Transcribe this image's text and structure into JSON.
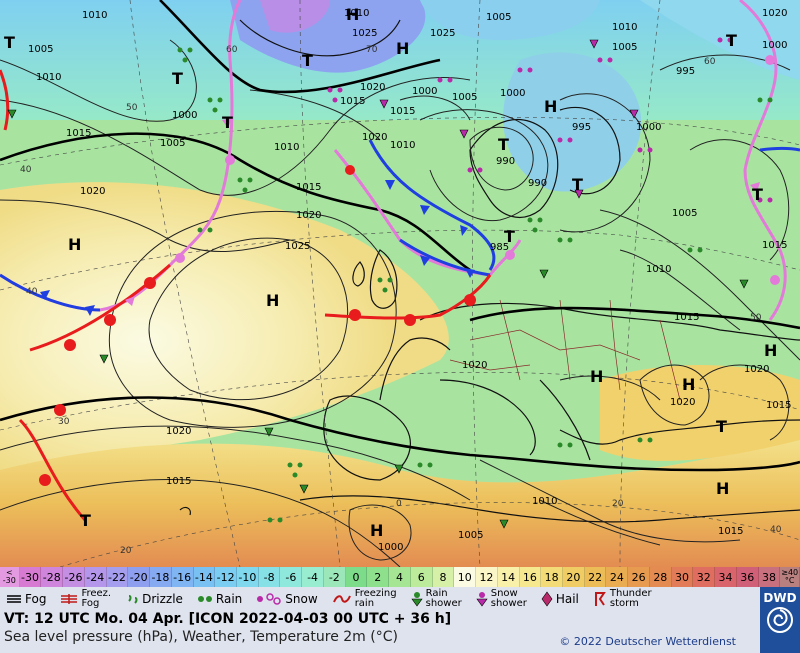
{
  "map": {
    "pressure_labels": [
      {
        "id": "p1",
        "text": "1010"
      },
      {
        "id": "p2",
        "text": "1005"
      },
      {
        "id": "p3",
        "text": "1010"
      },
      {
        "id": "p4",
        "text": "1000"
      },
      {
        "id": "p5",
        "text": "1005"
      },
      {
        "id": "p6",
        "text": "1015"
      },
      {
        "id": "p7",
        "text": "1020"
      },
      {
        "id": "p8",
        "text": "1020"
      },
      {
        "id": "p9",
        "text": "1025"
      },
      {
        "id": "p10",
        "text": "1020"
      },
      {
        "id": "p11",
        "text": "1015"
      },
      {
        "id": "p12",
        "text": "1020"
      },
      {
        "id": "p13",
        "text": "1025"
      },
      {
        "id": "p14",
        "text": "1020"
      },
      {
        "id": "p15",
        "text": "1015"
      },
      {
        "id": "p16",
        "text": "1010"
      },
      {
        "id": "p17",
        "text": "1005"
      },
      {
        "id": "p18",
        "text": "1000"
      },
      {
        "id": "p19",
        "text": "995"
      },
      {
        "id": "p20",
        "text": "990"
      },
      {
        "id": "p21",
        "text": "985"
      },
      {
        "id": "p22",
        "text": "990"
      },
      {
        "id": "p23",
        "text": "1000"
      },
      {
        "id": "p24",
        "text": "1005"
      },
      {
        "id": "p25",
        "text": "1010"
      },
      {
        "id": "p26",
        "text": "1015"
      },
      {
        "id": "p27",
        "text": "1020"
      },
      {
        "id": "p28",
        "text": "1015"
      },
      {
        "id": "p29",
        "text": "1010"
      },
      {
        "id": "p30",
        "text": "1005"
      },
      {
        "id": "p31",
        "text": "1000"
      },
      {
        "id": "p32",
        "text": "1015"
      },
      {
        "id": "p33",
        "text": "1020"
      },
      {
        "id": "p34",
        "text": "1010"
      },
      {
        "id": "p35",
        "text": "995"
      },
      {
        "id": "p36",
        "text": "1000"
      },
      {
        "id": "p37",
        "text": "1005"
      },
      {
        "id": "p38",
        "text": "1010"
      },
      {
        "id": "p39",
        "text": "1000"
      },
      {
        "id": "p40",
        "text": "1005"
      },
      {
        "id": "p41",
        "text": "1015"
      },
      {
        "id": "p42",
        "text": "1020"
      },
      {
        "id": "p43",
        "text": "1015"
      },
      {
        "id": "p44",
        "text": "1010"
      },
      {
        "id": "p45",
        "text": "1025"
      },
      {
        "id": "p46",
        "text": "1015"
      },
      {
        "id": "p47",
        "text": "1020"
      }
    ],
    "centers": [
      {
        "id": "c1",
        "text": "H"
      },
      {
        "id": "c2",
        "text": "H"
      },
      {
        "id": "c3",
        "text": "T"
      },
      {
        "id": "c4",
        "text": "T"
      },
      {
        "id": "c5",
        "text": "T"
      },
      {
        "id": "c6",
        "text": "H"
      },
      {
        "id": "c7",
        "text": "H"
      },
      {
        "id": "c8",
        "text": "T"
      },
      {
        "id": "c9",
        "text": "T"
      },
      {
        "id": "c10",
        "text": "T"
      },
      {
        "id": "c11",
        "text": "H"
      },
      {
        "id": "c12",
        "text": "H"
      },
      {
        "id": "c13",
        "text": "T"
      },
      {
        "id": "c14",
        "text": "H"
      },
      {
        "id": "c15",
        "text": "T"
      },
      {
        "id": "c16",
        "text": "H"
      },
      {
        "id": "c17",
        "text": "T"
      },
      {
        "id": "c18",
        "text": "T"
      },
      {
        "id": "c19",
        "text": "H"
      },
      {
        "id": "c20",
        "text": "H"
      },
      {
        "id": "c21",
        "text": "T"
      }
    ],
    "lat_labels": [
      {
        "id": "l1",
        "text": "40"
      },
      {
        "id": "l2",
        "text": "50"
      },
      {
        "id": "l3",
        "text": "60"
      },
      {
        "id": "l4",
        "text": "70"
      },
      {
        "id": "l5",
        "text": "40"
      },
      {
        "id": "l6",
        "text": "30"
      },
      {
        "id": "l7",
        "text": "20"
      },
      {
        "id": "l8",
        "text": "20"
      },
      {
        "id": "l9",
        "text": "0"
      },
      {
        "id": "l10",
        "text": "50"
      },
      {
        "id": "l11",
        "text": "60"
      },
      {
        "id": "l12",
        "text": "40"
      }
    ]
  },
  "temperature_scale": {
    "low_edge": [
      "<",
      "-30"
    ],
    "high_edge": [
      "≥40",
      "°C"
    ],
    "steps": [
      {
        "label": "-30",
        "color": "#d77bd2"
      },
      {
        "label": "-28",
        "color": "#cf85db"
      },
      {
        "label": "-26",
        "color": "#c48fe3"
      },
      {
        "label": "-24",
        "color": "#b497ea"
      },
      {
        "label": "-22",
        "color": "#a59eef"
      },
      {
        "label": "-20",
        "color": "#8f9ff0"
      },
      {
        "label": "-18",
        "color": "#86aaf2"
      },
      {
        "label": "-16",
        "color": "#7fb5f3"
      },
      {
        "label": "-14",
        "color": "#7ac1f3"
      },
      {
        "label": "-12",
        "color": "#7bcdf2"
      },
      {
        "label": "-10",
        "color": "#7fd8ee"
      },
      {
        "label": "-8",
        "color": "#85e1e6"
      },
      {
        "label": "-6",
        "color": "#8ee8dc"
      },
      {
        "label": "-4",
        "color": "#98ecd0"
      },
      {
        "label": "-2",
        "color": "#9be7b9"
      },
      {
        "label": "0",
        "color": "#7ddc8a"
      },
      {
        "label": "2",
        "color": "#8ee08d"
      },
      {
        "label": "4",
        "color": "#a5e593"
      },
      {
        "label": "6",
        "color": "#bdeb9c"
      },
      {
        "label": "8",
        "color": "#d6f0a8"
      },
      {
        "label": "10",
        "color": "#fbfbe3"
      },
      {
        "label": "12",
        "color": "#fbf6c8"
      },
      {
        "label": "14",
        "color": "#f9f0aa"
      },
      {
        "label": "16",
        "color": "#f6e88f"
      },
      {
        "label": "18",
        "color": "#f3dc77"
      },
      {
        "label": "20",
        "color": "#efcd64"
      },
      {
        "label": "22",
        "color": "#ecbd57"
      },
      {
        "label": "24",
        "color": "#e9ac50"
      },
      {
        "label": "26",
        "color": "#e69b4f"
      },
      {
        "label": "28",
        "color": "#e48b52"
      },
      {
        "label": "30",
        "color": "#e27b58"
      },
      {
        "label": "32",
        "color": "#df6d60"
      },
      {
        "label": "34",
        "color": "#d9646c"
      },
      {
        "label": "36",
        "color": "#d06077"
      },
      {
        "label": "38",
        "color": "#c9707f"
      }
    ]
  },
  "weather_legend": [
    {
      "id": "fog",
      "name": "fog-icon",
      "label": "Fog",
      "lines": 1
    },
    {
      "id": "freezing-fog",
      "name": "freezing-fog-icon",
      "label": "Freez.\nFog",
      "lines": 2
    },
    {
      "id": "drizzle",
      "name": "drizzle-icon",
      "label": "Drizzle",
      "lines": 1
    },
    {
      "id": "rain",
      "name": "rain-icon",
      "label": "Rain",
      "lines": 1
    },
    {
      "id": "snow",
      "name": "snow-icon",
      "label": "Snow",
      "lines": 1
    },
    {
      "id": "freezing-rain",
      "name": "freezing-rain-icon",
      "label": "Freezing\nrain",
      "lines": 2
    },
    {
      "id": "rain-shower",
      "name": "rain-shower-icon",
      "label": "Rain\nshower",
      "lines": 2
    },
    {
      "id": "snow-shower",
      "name": "snow-shower-icon",
      "label": "Snow\nshower",
      "lines": 2
    },
    {
      "id": "hail",
      "name": "hail-icon",
      "label": "Hail",
      "lines": 1
    },
    {
      "id": "thunderstorm",
      "name": "thunderstorm-icon",
      "label": "Thunder\nstorm",
      "lines": 2
    }
  ],
  "footer": {
    "valid_time": "VT: 12 UTC Mo.  04 Apr. [ICON 2022-04-03  00 UTC + 36 h]",
    "description": "Sea level pressure (hPa), Weather, Temperature 2m (°C)",
    "copyright": "© 2022 Deutscher Wetterdienst"
  },
  "logo": {
    "text": "DWD"
  },
  "colors": {
    "cold_front": "#1f3fe0",
    "warm_front": "#e81c1c",
    "occlusion": "#e37ad9",
    "isobar": "#222222",
    "land_border": "#111111",
    "legend_bg": "#dfe3ee"
  }
}
